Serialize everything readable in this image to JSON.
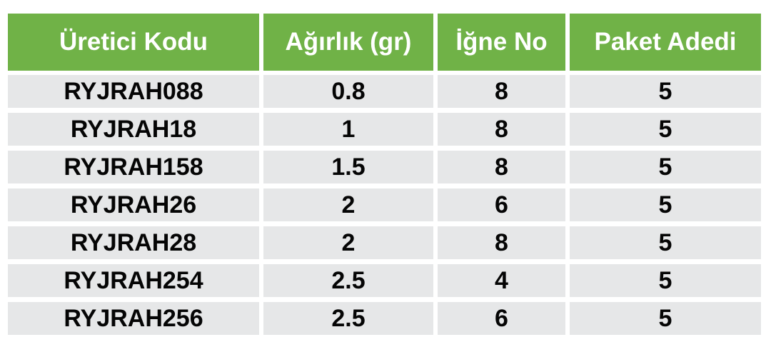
{
  "colors": {
    "header_bg": "#70b247",
    "header_text": "#ffffff",
    "row_bg": "#e6e7e8",
    "row_text": "#050505",
    "page_bg": "#ffffff"
  },
  "chart_data": {
    "type": "table",
    "columns": [
      "Üretici Kodu",
      "Ağırlık (gr)",
      "İğne No",
      "Paket Adedi"
    ],
    "rows": [
      [
        "RYJRAH088",
        "0.8",
        "8",
        "5"
      ],
      [
        "RYJRAH18",
        "1",
        "8",
        "5"
      ],
      [
        "RYJRAH158",
        "1.5",
        "8",
        "5"
      ],
      [
        "RYJRAH26",
        "2",
        "6",
        "5"
      ],
      [
        "RYJRAH28",
        "2",
        "8",
        "5"
      ],
      [
        "RYJRAH254",
        "2.5",
        "4",
        "5"
      ],
      [
        "RYJRAH256",
        "2.5",
        "6",
        "5"
      ]
    ],
    "layout": {
      "legend": "none",
      "grid": "off",
      "header_position": "top"
    }
  }
}
